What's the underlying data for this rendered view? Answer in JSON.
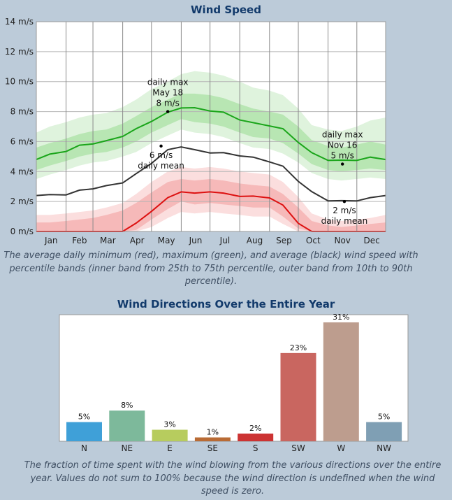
{
  "titles": {
    "wind_speed": "Wind Speed",
    "wind_directions": "Wind Directions Over the Entire Year"
  },
  "captions": {
    "wind_speed": "The average daily minimum (red), maximum (green), and average (black) wind speed with percentile bands (inner band from 25th to 75th percentile, outer band from 10th to 90th percentile).",
    "wind_directions": "The fraction of time spent with the wind blowing from the various directions over the entire year. Values do not sum to 100% because the wind direction is undefined when the wind speed is zero."
  },
  "chart_data": [
    {
      "type": "line",
      "title": "Wind Speed",
      "ylabel": "m/s",
      "ylim": [
        0,
        14
      ],
      "y_ticks": [
        0,
        2,
        4,
        6,
        8,
        10,
        12,
        14
      ],
      "y_tick_labels": [
        "0 m/s",
        "2 m/s",
        "4 m/s",
        "6 m/s",
        "8 m/s",
        "10 m/s",
        "12 m/s",
        "14 m/s"
      ],
      "x_tick_labels": [
        "Jan",
        "Feb",
        "Mar",
        "Apr",
        "May",
        "Jun",
        "Jul",
        "Aug",
        "Sep",
        "Oct",
        "Nov",
        "Dec"
      ],
      "x_unit": "day of year",
      "x": [
        1,
        15,
        32,
        46,
        60,
        74,
        91,
        105,
        121,
        138,
        152,
        166,
        182,
        196,
        213,
        227,
        244,
        258,
        274,
        288,
        305,
        319,
        335,
        349,
        365
      ],
      "series": [
        {
          "name": "daily max",
          "color": "#1aa51a",
          "values": [
            4.8,
            5.1,
            5.4,
            5.7,
            5.9,
            6.0,
            6.4,
            6.8,
            7.4,
            7.9,
            8.3,
            8.2,
            8.1,
            7.9,
            7.5,
            7.2,
            7.1,
            6.8,
            6.0,
            5.2,
            4.8,
            4.7,
            4.8,
            4.9,
            4.8
          ],
          "p25": [
            4.1,
            4.4,
            4.7,
            5.0,
            5.2,
            5.3,
            5.6,
            6.0,
            6.6,
            7.1,
            7.5,
            7.3,
            7.2,
            7.0,
            6.6,
            6.3,
            6.2,
            5.9,
            5.2,
            4.5,
            4.1,
            4.0,
            4.1,
            4.2,
            4.1
          ],
          "p75": [
            5.6,
            5.9,
            6.2,
            6.5,
            6.7,
            6.8,
            7.2,
            7.7,
            8.3,
            8.8,
            9.2,
            9.2,
            9.1,
            8.9,
            8.5,
            8.2,
            8.0,
            7.8,
            7.0,
            6.1,
            5.7,
            5.6,
            5.8,
            6.0,
            5.8
          ],
          "p10": [
            3.5,
            3.8,
            4.1,
            4.4,
            4.6,
            4.7,
            5.0,
            5.3,
            5.9,
            6.4,
            6.8,
            6.6,
            6.5,
            6.3,
            5.9,
            5.6,
            5.5,
            5.2,
            4.6,
            3.9,
            3.5,
            3.4,
            3.5,
            3.6,
            3.5
          ],
          "p90": [
            6.6,
            7.0,
            7.3,
            7.6,
            7.8,
            7.9,
            8.3,
            8.8,
            9.5,
            10.0,
            10.5,
            10.7,
            10.6,
            10.4,
            10.0,
            9.6,
            9.4,
            9.1,
            8.2,
            7.1,
            6.8,
            6.7,
            7.0,
            7.4,
            7.6
          ]
        },
        {
          "name": "daily mean",
          "color": "#333333",
          "values": [
            2.4,
            2.4,
            2.5,
            2.7,
            2.9,
            3.0,
            3.3,
            3.8,
            4.6,
            5.4,
            5.7,
            5.4,
            5.3,
            5.2,
            5.1,
            4.9,
            4.7,
            4.3,
            3.4,
            2.6,
            2.1,
            2.0,
            2.1,
            2.2,
            2.4
          ]
        },
        {
          "name": "daily min",
          "color": "#dd1111",
          "values": [
            0,
            0,
            0,
            0,
            0,
            0,
            0,
            0.5,
            1.4,
            2.2,
            2.7,
            2.5,
            2.7,
            2.5,
            2.4,
            2.3,
            2.3,
            1.7,
            0.6,
            0,
            0,
            0,
            0,
            0,
            0
          ],
          "p25": [
            0,
            0,
            0,
            0,
            0,
            0,
            0,
            0.1,
            0.8,
            1.5,
            2.0,
            1.8,
            1.9,
            1.8,
            1.7,
            1.6,
            1.6,
            1.0,
            0.2,
            0,
            0,
            0,
            0,
            0,
            0
          ],
          "p75": [
            0.6,
            0.6,
            0.7,
            0.8,
            0.9,
            1.1,
            1.4,
            1.9,
            2.6,
            3.3,
            3.5,
            3.4,
            3.5,
            3.4,
            3.2,
            3.1,
            3.0,
            2.5,
            1.6,
            0.7,
            0.4,
            0.3,
            0.4,
            0.5,
            0.6
          ],
          "p10": [
            0,
            0,
            0,
            0,
            0,
            0,
            0,
            0,
            0.3,
            0.9,
            1.3,
            1.2,
            1.3,
            1.2,
            1.1,
            1.0,
            1.0,
            0.5,
            0,
            0,
            0,
            0,
            0,
            0,
            0
          ],
          "p90": [
            1.1,
            1.1,
            1.2,
            1.3,
            1.4,
            1.6,
            1.9,
            2.5,
            3.3,
            4.0,
            4.3,
            4.2,
            4.3,
            4.2,
            4.0,
            3.9,
            3.8,
            3.3,
            2.3,
            1.2,
            0.8,
            0.7,
            0.8,
            0.9,
            1.1
          ]
        }
      ],
      "annotations": [
        {
          "label": "daily max",
          "line2": "May 18",
          "line3": "8 m/s",
          "day": 138,
          "value": 8.0,
          "placement": "above"
        },
        {
          "label": "6 m/s",
          "line2": "daily mean",
          "day": 131,
          "value": 5.7,
          "placement": "below"
        },
        {
          "label": "daily max",
          "line2": "Nov 16",
          "line3": "5 m/s",
          "day": 320,
          "value": 4.5,
          "placement": "above"
        },
        {
          "label": "2 m/s",
          "line2": "daily mean",
          "day": 322,
          "value": 2.0,
          "placement": "below"
        }
      ]
    },
    {
      "type": "bar",
      "title": "Wind Directions Over the Entire Year",
      "categories": [
        "N",
        "NE",
        "E",
        "SE",
        "S",
        "SW",
        "W",
        "NW"
      ],
      "values": [
        5,
        8,
        3,
        1,
        2,
        23,
        31,
        5
      ],
      "value_labels": [
        "5%",
        "8%",
        "3%",
        "1%",
        "2%",
        "23%",
        "31%",
        "5%"
      ],
      "colors": [
        "#3fa0d8",
        "#7db99b",
        "#b7cc5e",
        "#b96b35",
        "#cc3333",
        "#c96660",
        "#bd9d8e",
        "#7f9fb4"
      ],
      "ylim": [
        0,
        33
      ]
    }
  ]
}
